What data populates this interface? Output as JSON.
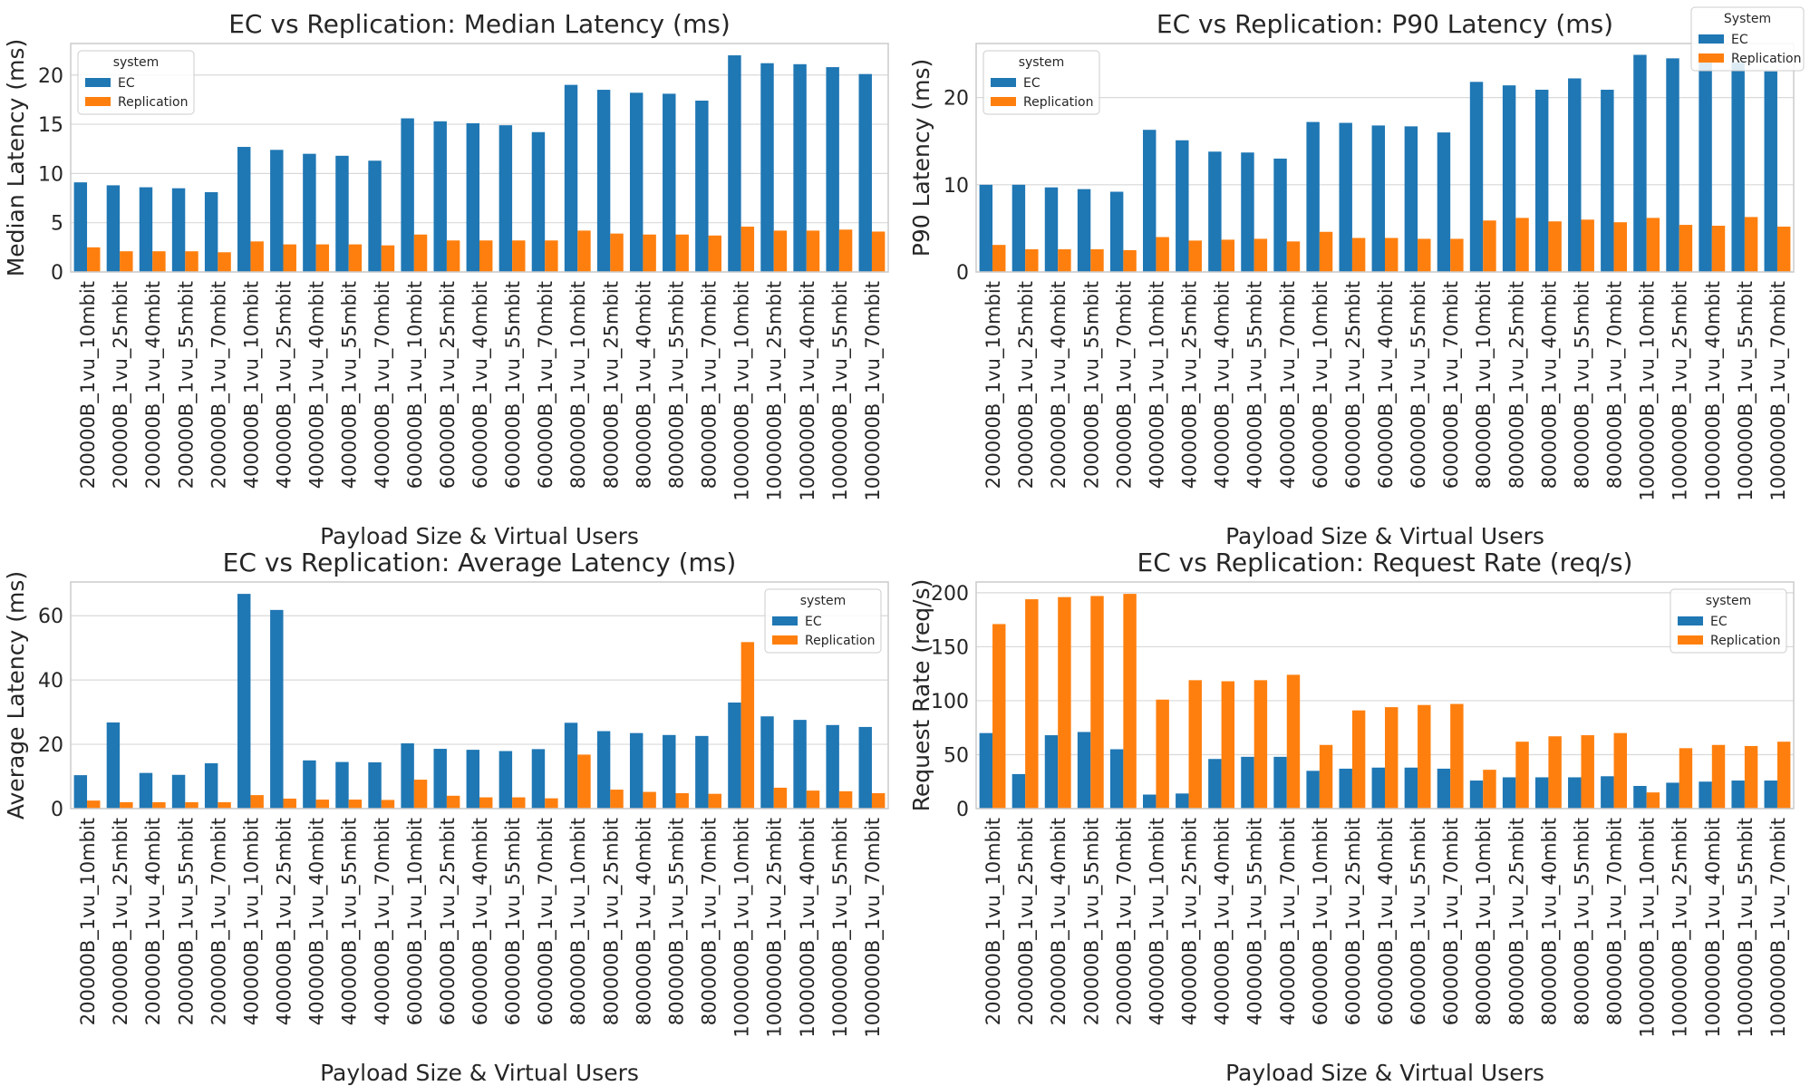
{
  "chart_data": [
    {
      "type": "bar",
      "title": "EC vs Replication: Median Latency (ms)",
      "xlabel": "Payload Size & Virtual Users",
      "ylabel": "Median Latency (ms)",
      "ylim": [
        0,
        23.2
      ],
      "yticks": [
        0,
        5,
        10,
        15,
        20
      ],
      "grid": true,
      "legend": {
        "title": "system",
        "position": "top-left"
      },
      "categories": [
        "200000B_1vu_10mbit",
        "200000B_1vu_25mbit",
        "200000B_1vu_40mbit",
        "200000B_1vu_55mbit",
        "200000B_1vu_70mbit",
        "400000B_1vu_10mbit",
        "400000B_1vu_25mbit",
        "400000B_1vu_40mbit",
        "400000B_1vu_55mbit",
        "400000B_1vu_70mbit",
        "600000B_1vu_10mbit",
        "600000B_1vu_25mbit",
        "600000B_1vu_40mbit",
        "600000B_1vu_55mbit",
        "600000B_1vu_70mbit",
        "800000B_1vu_10mbit",
        "800000B_1vu_25mbit",
        "800000B_1vu_40mbit",
        "800000B_1vu_55mbit",
        "800000B_1vu_70mbit",
        "1000000B_1vu_10mbit",
        "1000000B_1vu_25mbit",
        "1000000B_1vu_40mbit",
        "1000000B_1vu_55mbit",
        "1000000B_1vu_70mbit"
      ],
      "series": [
        {
          "name": "EC",
          "color": "#1f77b4",
          "values": [
            9.1,
            8.8,
            8.6,
            8.5,
            8.1,
            12.7,
            12.4,
            12.0,
            11.8,
            11.3,
            15.6,
            15.3,
            15.1,
            14.9,
            14.2,
            19.0,
            18.5,
            18.2,
            18.1,
            17.4,
            22.0,
            21.2,
            21.1,
            20.8,
            20.1
          ]
        },
        {
          "name": "Replication",
          "color": "#ff7f0e",
          "values": [
            2.5,
            2.1,
            2.1,
            2.1,
            2.0,
            3.1,
            2.8,
            2.8,
            2.8,
            2.7,
            3.8,
            3.2,
            3.2,
            3.2,
            3.2,
            4.2,
            3.9,
            3.8,
            3.8,
            3.7,
            4.6,
            4.2,
            4.2,
            4.3,
            4.1
          ]
        }
      ]
    },
    {
      "type": "bar",
      "title": "EC vs Replication: P90 Latency (ms)",
      "xlabel": "Payload Size & Virtual Users",
      "ylabel": "P90 Latency (ms)",
      "ylim": [
        0,
        26.2
      ],
      "yticks": [
        0,
        10,
        20
      ],
      "grid": true,
      "legend": {
        "title": "system",
        "position": "top-left"
      },
      "legend2": {
        "title": "System",
        "position": "upper-right-outside"
      },
      "categories": [
        "200000B_1vu_10mbit",
        "200000B_1vu_25mbit",
        "200000B_1vu_40mbit",
        "200000B_1vu_55mbit",
        "200000B_1vu_70mbit",
        "400000B_1vu_10mbit",
        "400000B_1vu_25mbit",
        "400000B_1vu_40mbit",
        "400000B_1vu_55mbit",
        "400000B_1vu_70mbit",
        "600000B_1vu_10mbit",
        "600000B_1vu_25mbit",
        "600000B_1vu_40mbit",
        "600000B_1vu_55mbit",
        "600000B_1vu_70mbit",
        "800000B_1vu_10mbit",
        "800000B_1vu_25mbit",
        "800000B_1vu_40mbit",
        "800000B_1vu_55mbit",
        "800000B_1vu_70mbit",
        "1000000B_1vu_10mbit",
        "1000000B_1vu_25mbit",
        "1000000B_1vu_40mbit",
        "1000000B_1vu_55mbit",
        "1000000B_1vu_70mbit"
      ],
      "series": [
        {
          "name": "EC",
          "color": "#1f77b4",
          "values": [
            10.0,
            10.0,
            9.7,
            9.5,
            9.2,
            16.3,
            15.1,
            13.8,
            13.7,
            13.0,
            17.2,
            17.1,
            16.8,
            16.7,
            16.0,
            21.8,
            21.4,
            20.9,
            22.2,
            20.9,
            24.9,
            24.5,
            24.2,
            24.0,
            23.0
          ]
        },
        {
          "name": "Replication",
          "color": "#ff7f0e",
          "values": [
            3.1,
            2.6,
            2.6,
            2.6,
            2.5,
            4.0,
            3.6,
            3.7,
            3.8,
            3.5,
            4.6,
            3.9,
            3.9,
            3.8,
            3.8,
            5.9,
            6.2,
            5.8,
            6.0,
            5.7,
            6.2,
            5.4,
            5.3,
            6.3,
            5.2
          ]
        }
      ]
    },
    {
      "type": "bar",
      "title": "EC vs Replication: Average Latency (ms)",
      "xlabel": "Payload Size & Virtual Users",
      "ylabel": "Average Latency (ms)",
      "ylim": [
        0,
        70.5
      ],
      "yticks": [
        0,
        20,
        40,
        60
      ],
      "grid": true,
      "legend": {
        "title": "system",
        "position": "top-right"
      },
      "categories": [
        "200000B_1vu_10mbit",
        "200000B_1vu_25mbit",
        "200000B_1vu_40mbit",
        "200000B_1vu_55mbit",
        "200000B_1vu_70mbit",
        "400000B_1vu_10mbit",
        "400000B_1vu_25mbit",
        "400000B_1vu_40mbit",
        "400000B_1vu_55mbit",
        "400000B_1vu_70mbit",
        "600000B_1vu_10mbit",
        "600000B_1vu_25mbit",
        "600000B_1vu_40mbit",
        "600000B_1vu_55mbit",
        "600000B_1vu_70mbit",
        "800000B_1vu_10mbit",
        "800000B_1vu_25mbit",
        "800000B_1vu_40mbit",
        "800000B_1vu_55mbit",
        "800000B_1vu_70mbit",
        "1000000B_1vu_10mbit",
        "1000000B_1vu_25mbit",
        "1000000B_1vu_40mbit",
        "1000000B_1vu_55mbit",
        "1000000B_1vu_70mbit"
      ],
      "series": [
        {
          "name": "EC",
          "color": "#1f77b4",
          "values": [
            10.4,
            26.8,
            11.1,
            10.5,
            14.1,
            66.8,
            61.8,
            15.0,
            14.5,
            14.4,
            20.3,
            18.6,
            18.3,
            17.9,
            18.5,
            26.7,
            24.1,
            23.5,
            22.9,
            22.6,
            33.0,
            28.7,
            27.6,
            26.0,
            25.4
          ]
        },
        {
          "name": "Replication",
          "color": "#ff7f0e",
          "values": [
            2.5,
            2.0,
            2.0,
            2.0,
            2.0,
            4.2,
            3.1,
            2.8,
            2.8,
            2.7,
            9.0,
            4.0,
            3.5,
            3.5,
            3.2,
            16.8,
            5.9,
            5.2,
            4.8,
            4.6,
            51.8,
            6.5,
            5.6,
            5.4,
            4.8
          ]
        }
      ]
    },
    {
      "type": "bar",
      "title": "EC vs Replication: Request Rate (req/s)",
      "xlabel": "Payload Size & Virtual Users",
      "ylabel": "Request Rate (req/s)",
      "ylim": [
        0,
        210
      ],
      "yticks": [
        0,
        50,
        100,
        150,
        200
      ],
      "grid": true,
      "legend": {
        "title": "system",
        "position": "top-right"
      },
      "categories": [
        "200000B_1vu_10mbit",
        "200000B_1vu_25mbit",
        "200000B_1vu_40mbit",
        "200000B_1vu_55mbit",
        "200000B_1vu_70mbit",
        "400000B_1vu_10mbit",
        "400000B_1vu_25mbit",
        "400000B_1vu_40mbit",
        "400000B_1vu_55mbit",
        "400000B_1vu_70mbit",
        "600000B_1vu_10mbit",
        "600000B_1vu_25mbit",
        "600000B_1vu_40mbit",
        "600000B_1vu_55mbit",
        "600000B_1vu_70mbit",
        "800000B_1vu_10mbit",
        "800000B_1vu_25mbit",
        "800000B_1vu_40mbit",
        "800000B_1vu_55mbit",
        "800000B_1vu_70mbit",
        "1000000B_1vu_10mbit",
        "1000000B_1vu_25mbit",
        "1000000B_1vu_40mbit",
        "1000000B_1vu_55mbit",
        "1000000B_1vu_70mbit"
      ],
      "series": [
        {
          "name": "EC",
          "color": "#1f77b4",
          "values": [
            70,
            32,
            68,
            71,
            55,
            13,
            14,
            46,
            48,
            48,
            35,
            37,
            38,
            38,
            37,
            26,
            29,
            29,
            29,
            30,
            21,
            24,
            25,
            26,
            26
          ]
        },
        {
          "name": "Replication",
          "color": "#ff7f0e",
          "values": [
            171,
            194,
            196,
            197,
            199,
            101,
            119,
            118,
            119,
            124,
            59,
            91,
            94,
            96,
            97,
            36,
            62,
            67,
            68,
            70,
            15,
            56,
            59,
            58,
            62
          ]
        }
      ]
    }
  ]
}
